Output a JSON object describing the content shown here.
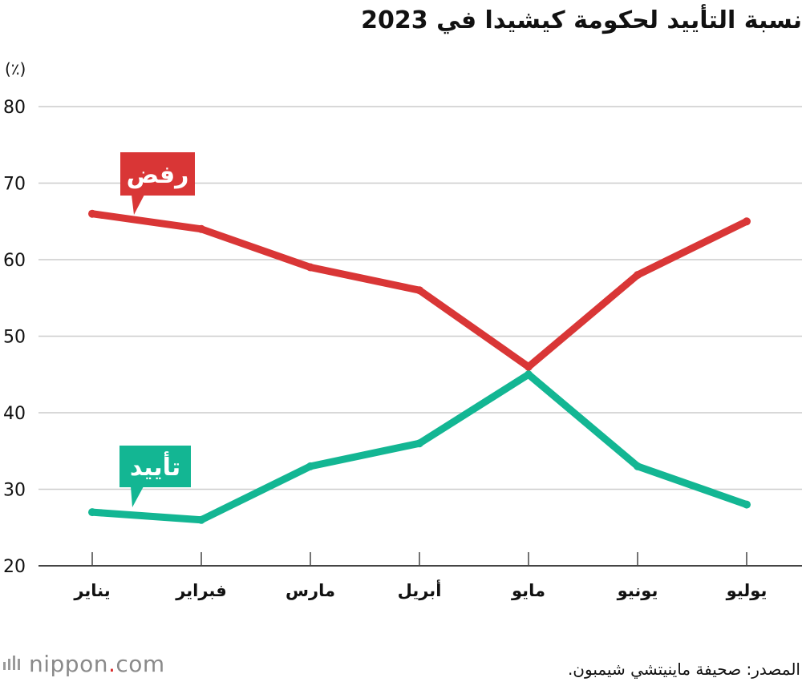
{
  "title": "نسبة التأييد لحكومة كيشيدا في 2023",
  "unit_label": "(٪)",
  "source": "المصدر: صحيفة ماينيتشي شيمبون.",
  "logo": {
    "name": "nippon",
    "dot": ".",
    "domain": "com"
  },
  "colors": {
    "reject": "#d93636",
    "approve": "#13b693",
    "grid": "#cccccc",
    "axis": "#444444"
  },
  "chart_data": {
    "type": "line",
    "title": "نسبة التأييد لحكومة كيشيدا في 2023",
    "ylabel": "(٪)",
    "xlabel": "",
    "categories": [
      "يناير",
      "فبراير",
      "مارس",
      "أبريل",
      "مايو",
      "يونيو",
      "يوليو"
    ],
    "yticks": [
      20,
      30,
      40,
      50,
      60,
      70,
      80
    ],
    "ylim": [
      20,
      80
    ],
    "grid": true,
    "series": [
      {
        "name": "رفض",
        "color": "#d93636",
        "values": [
          66,
          64,
          59,
          56,
          46,
          58,
          65
        ]
      },
      {
        "name": "تأييد",
        "color": "#13b693",
        "values": [
          27,
          26,
          33,
          36,
          45,
          33,
          28
        ]
      }
    ]
  }
}
